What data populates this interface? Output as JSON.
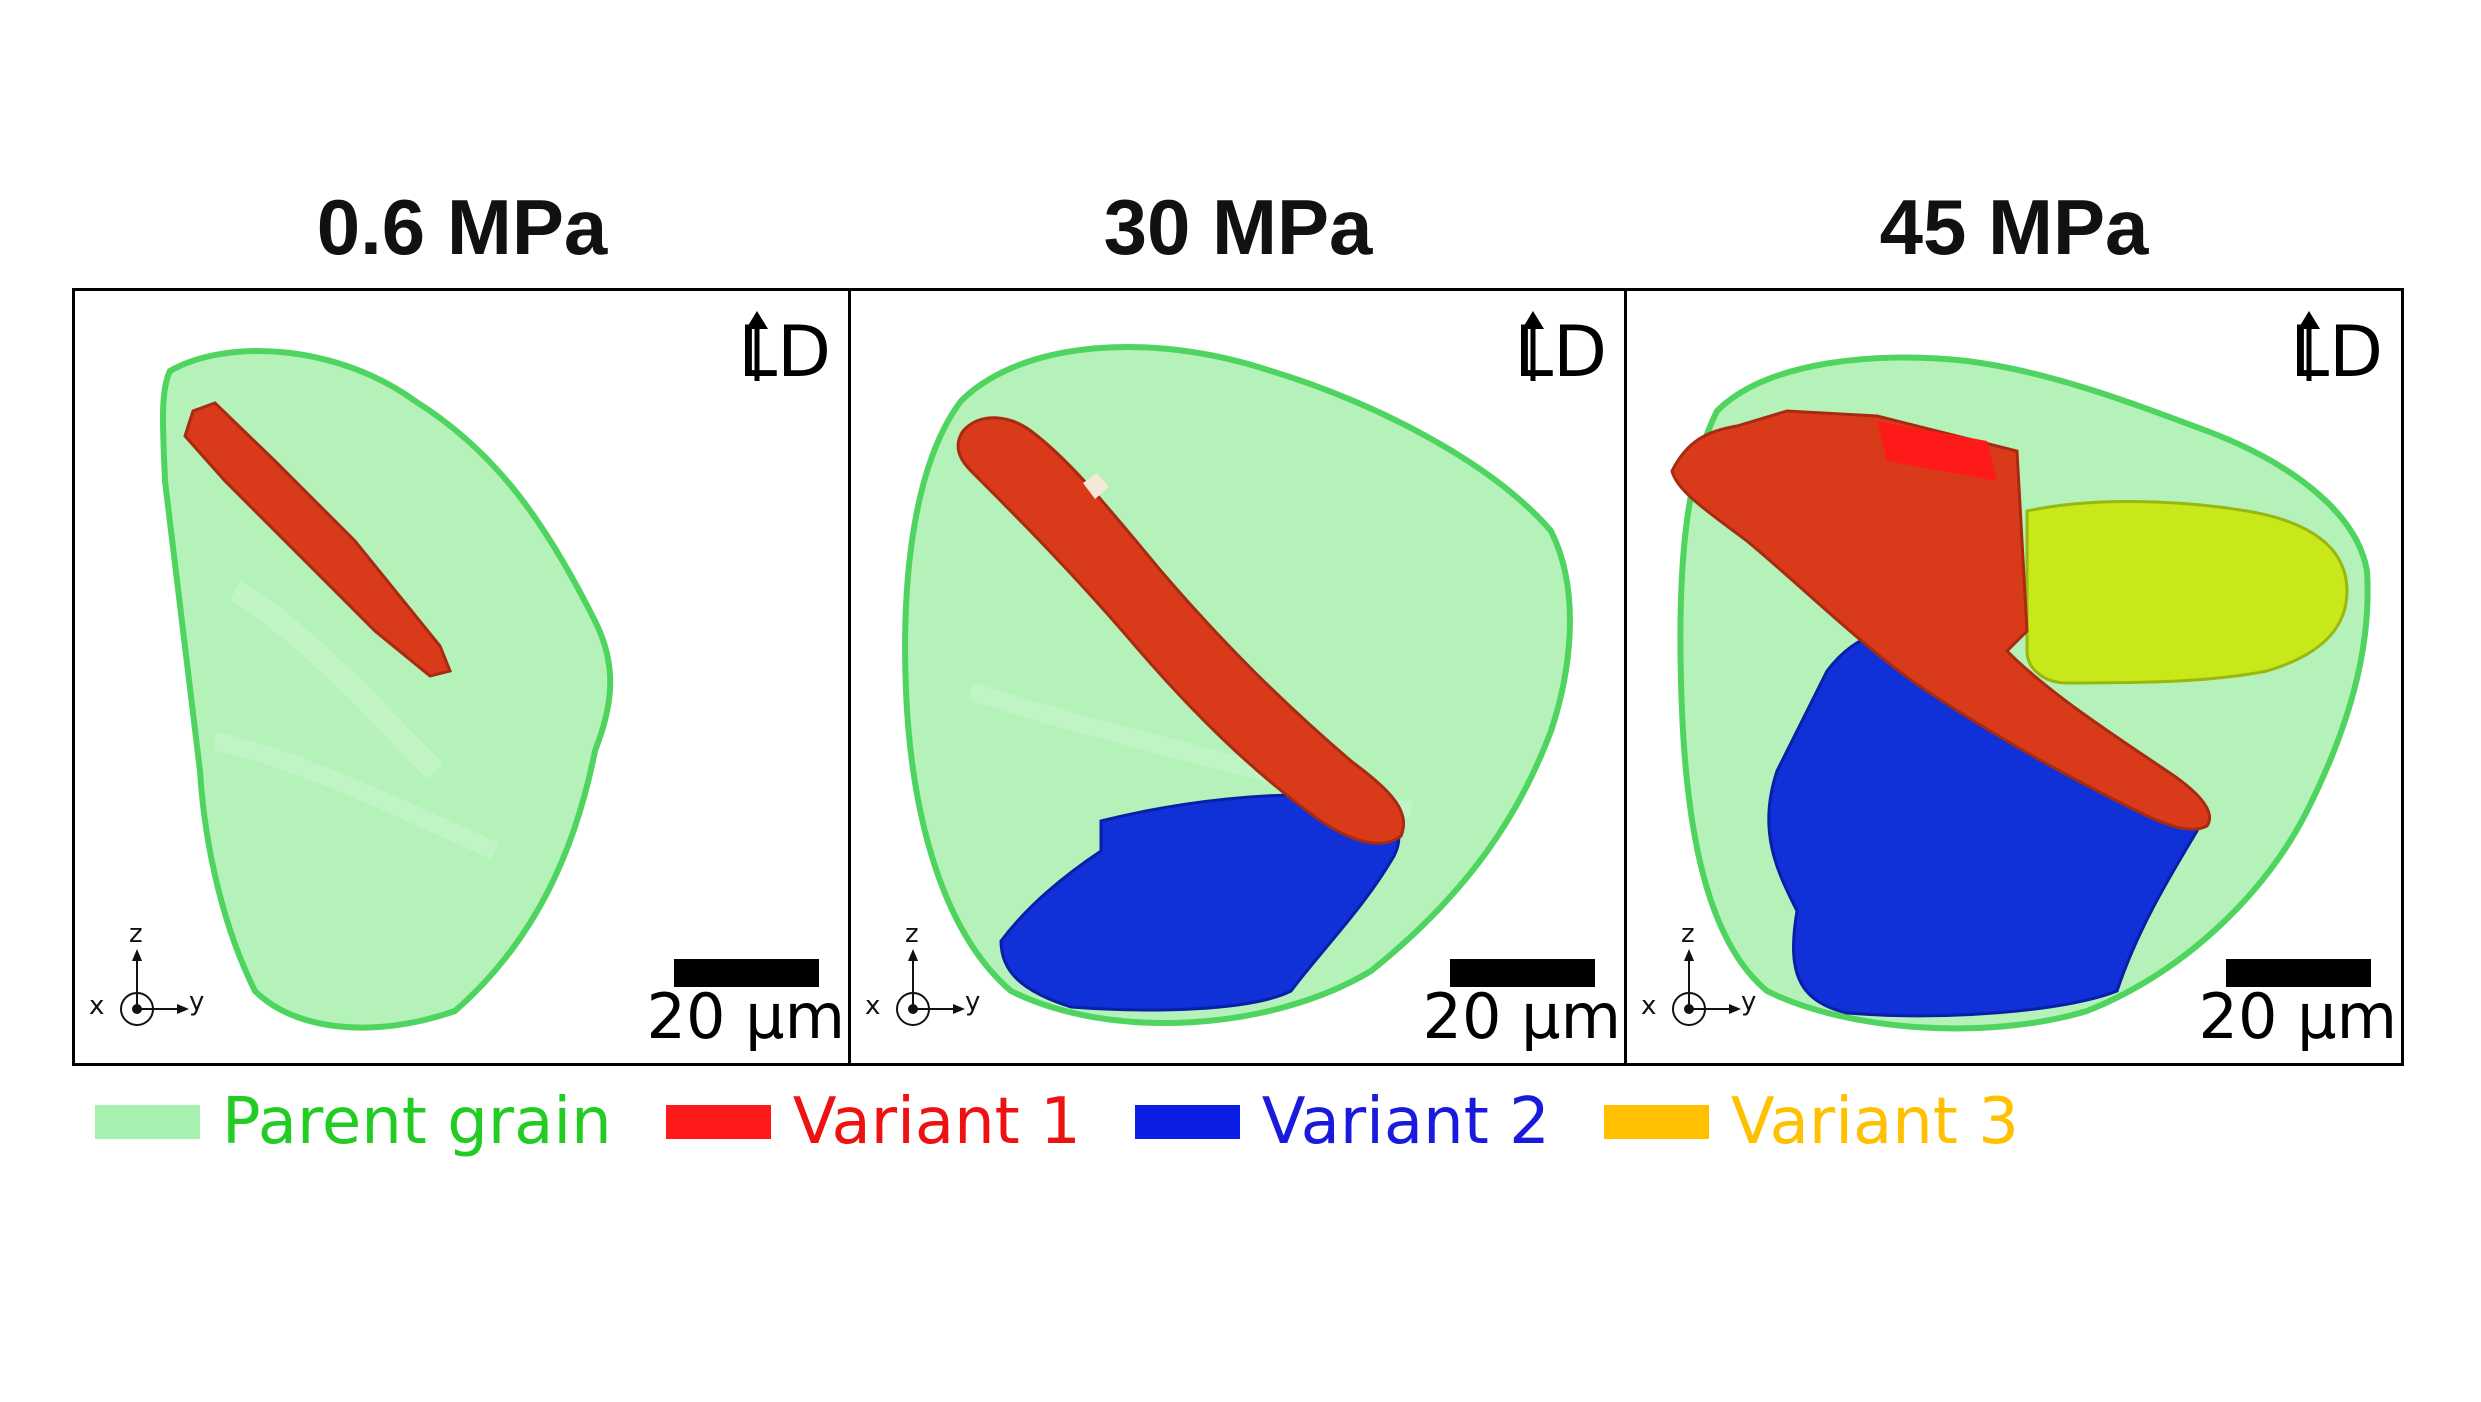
{
  "panels": [
    {
      "title": "0.6 MPa",
      "ld_label": "LD",
      "scale_label": "20 µm",
      "axes": {
        "x": "x",
        "y": "y",
        "z": "z"
      }
    },
    {
      "title": "30 MPa",
      "ld_label": "LD",
      "scale_label": "20 µm",
      "axes": {
        "x": "x",
        "y": "y",
        "z": "z"
      }
    },
    {
      "title": "45 MPa",
      "ld_label": "LD",
      "scale_label": "20 µm",
      "axes": {
        "x": "x",
        "y": "y",
        "z": "z"
      }
    }
  ],
  "legend": [
    {
      "label": "Parent grain",
      "swatch_color": "#a6f0b0",
      "text_color": "#22cc22"
    },
    {
      "label": "Variant 1",
      "swatch_color": "#ff1a1a",
      "text_color": "#ee1111"
    },
    {
      "label": "Variant 2",
      "swatch_color": "#0a1ee6",
      "text_color": "#1a1add"
    },
    {
      "label": "Variant 3",
      "swatch_color": "#ffc000",
      "text_color": "#ffc000"
    }
  ],
  "colors": {
    "parent": "#a8f0ae",
    "parent_edge": "#4fd45f",
    "variant1": "#d93a1a",
    "variant2": "#1030d8",
    "variant3": "#c8e81a"
  }
}
